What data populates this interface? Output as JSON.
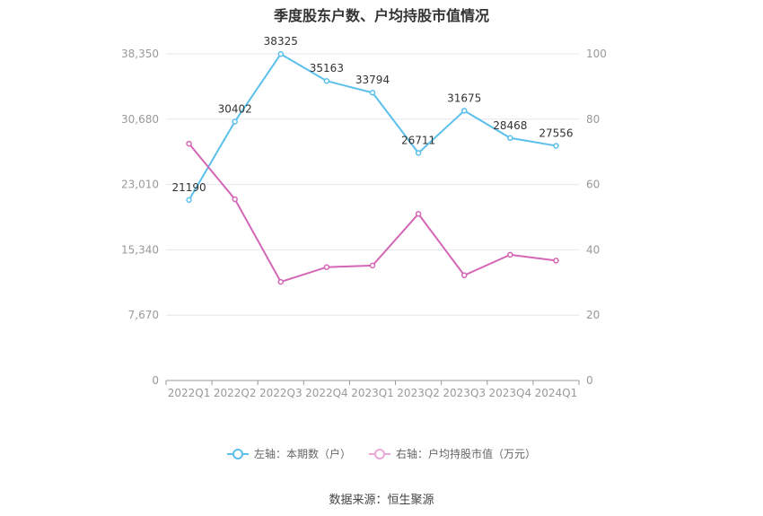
{
  "chart_data": {
    "type": "line",
    "title": "季度股东户数、户均持股市值情况",
    "categories": [
      "2022Q1",
      "2022Q2",
      "2022Q3",
      "2022Q4",
      "2023Q1",
      "2023Q2",
      "2023Q3",
      "2023Q4",
      "2024Q1"
    ],
    "series": [
      {
        "name": "左轴：本期数（户）",
        "axis": "left",
        "color": "#5bc0eb",
        "values": [
          21190,
          30402,
          38325,
          35163,
          33794,
          26711,
          31675,
          28468,
          27556
        ],
        "labels": [
          "21190",
          "30402",
          "38325",
          "35163",
          "33794",
          "26711",
          "31675",
          "28468",
          "27556"
        ]
      },
      {
        "name": "右轴：户均持股市值（万元）",
        "axis": "right",
        "color": "#d466b6",
        "values": [
          72.5,
          55.5,
          30.2,
          34.7,
          35.2,
          51.0,
          32.2,
          38.5,
          36.7
        ]
      }
    ],
    "left_axis": {
      "ylim": [
        0,
        38350
      ],
      "ticks": [
        "0",
        "7,670",
        "15,340",
        "23,010",
        "30,680",
        "38,350"
      ]
    },
    "right_axis": {
      "ylim": [
        0,
        100
      ],
      "ticks": [
        "0",
        "20",
        "40",
        "60",
        "80",
        "100"
      ]
    },
    "grid": true,
    "legend_position": "bottom"
  },
  "source": "数据来源：恒生聚源"
}
